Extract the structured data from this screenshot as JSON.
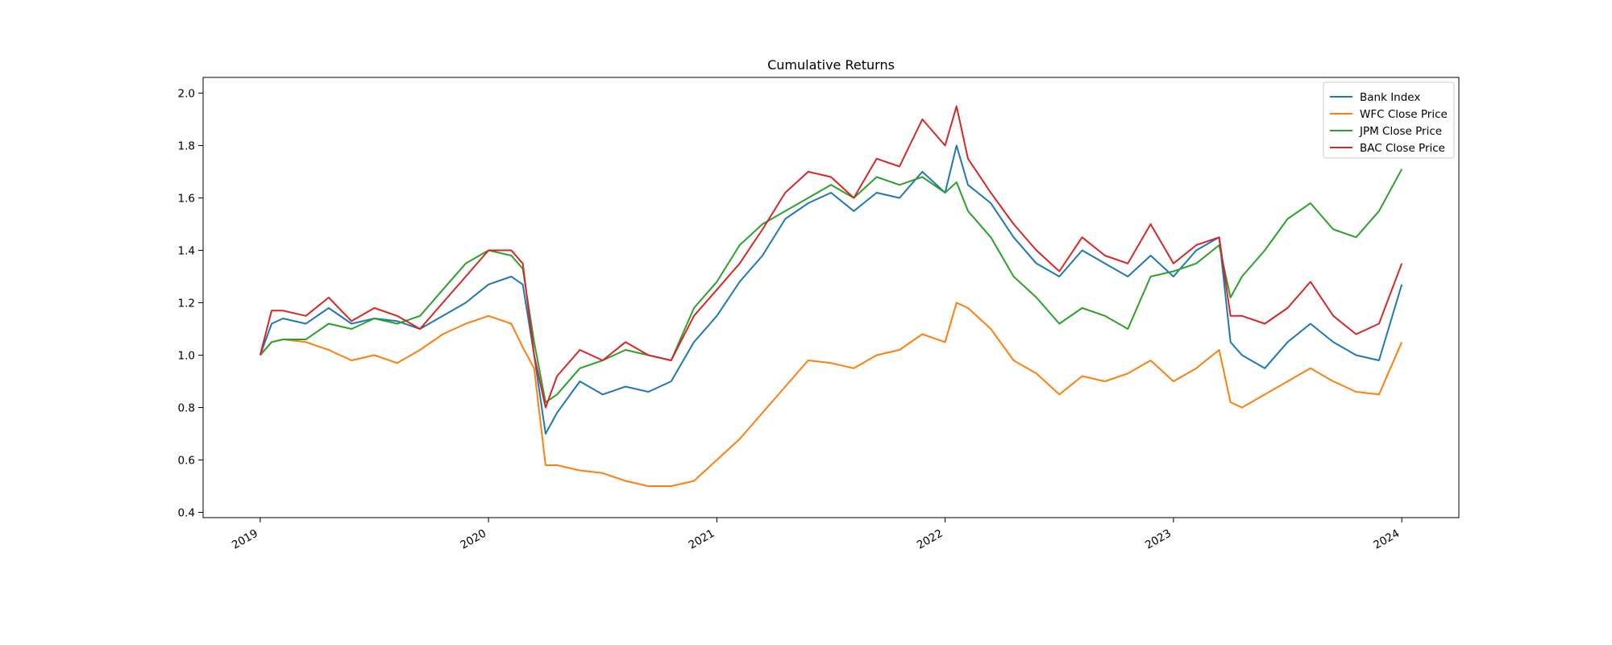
{
  "chart_data": {
    "type": "line",
    "title": "Cumulative Returns",
    "xlabel": "",
    "ylabel": "",
    "xlim": [
      2018.75,
      2024.25
    ],
    "ylim": [
      0.38,
      2.06
    ],
    "x_ticks": [
      2019,
      2020,
      2021,
      2022,
      2023,
      2024
    ],
    "x_tick_labels": [
      "2019",
      "2020",
      "2021",
      "2022",
      "2023",
      "2024"
    ],
    "y_ticks": [
      0.4,
      0.6,
      0.8,
      1.0,
      1.2,
      1.4,
      1.6,
      1.8,
      2.0
    ],
    "y_tick_labels": [
      "0.4",
      "0.6",
      "0.8",
      "1.0",
      "1.2",
      "1.4",
      "1.6",
      "1.8",
      "2.0"
    ],
    "grid": false,
    "legend_position": "top-right",
    "series": [
      {
        "name": "Bank Index",
        "color": "#1f77b4",
        "x": [
          2019.0,
          2019.05,
          2019.1,
          2019.2,
          2019.3,
          2019.4,
          2019.5,
          2019.6,
          2019.7,
          2019.8,
          2019.9,
          2020.0,
          2020.1,
          2020.15,
          2020.2,
          2020.25,
          2020.3,
          2020.4,
          2020.5,
          2020.6,
          2020.7,
          2020.8,
          2020.9,
          2021.0,
          2021.1,
          2021.2,
          2021.3,
          2021.4,
          2021.5,
          2021.6,
          2021.7,
          2021.8,
          2021.9,
          2022.0,
          2022.05,
          2022.1,
          2022.2,
          2022.3,
          2022.4,
          2022.5,
          2022.6,
          2022.7,
          2022.8,
          2022.9,
          2023.0,
          2023.1,
          2023.2,
          2023.25,
          2023.3,
          2023.4,
          2023.5,
          2023.6,
          2023.7,
          2023.8,
          2023.9,
          2024.0
        ],
        "y": [
          1.0,
          1.12,
          1.14,
          1.12,
          1.18,
          1.12,
          1.14,
          1.13,
          1.1,
          1.15,
          1.2,
          1.27,
          1.3,
          1.27,
          1.0,
          0.7,
          0.78,
          0.9,
          0.85,
          0.88,
          0.86,
          0.9,
          1.05,
          1.15,
          1.28,
          1.38,
          1.52,
          1.58,
          1.62,
          1.55,
          1.62,
          1.6,
          1.7,
          1.62,
          1.8,
          1.65,
          1.58,
          1.45,
          1.35,
          1.3,
          1.4,
          1.35,
          1.3,
          1.38,
          1.3,
          1.4,
          1.45,
          1.05,
          1.0,
          0.95,
          1.05,
          1.12,
          1.05,
          1.0,
          0.98,
          1.27
        ]
      },
      {
        "name": "WFC Close Price",
        "color": "#ff7f0e",
        "x": [
          2019.0,
          2019.05,
          2019.1,
          2019.2,
          2019.3,
          2019.4,
          2019.5,
          2019.6,
          2019.7,
          2019.8,
          2019.9,
          2020.0,
          2020.1,
          2020.15,
          2020.2,
          2020.25,
          2020.3,
          2020.4,
          2020.5,
          2020.6,
          2020.7,
          2020.8,
          2020.9,
          2021.0,
          2021.1,
          2021.2,
          2021.3,
          2021.4,
          2021.5,
          2021.6,
          2021.7,
          2021.8,
          2021.9,
          2022.0,
          2022.05,
          2022.1,
          2022.2,
          2022.3,
          2022.4,
          2022.5,
          2022.6,
          2022.7,
          2022.8,
          2022.9,
          2023.0,
          2023.1,
          2023.2,
          2023.25,
          2023.3,
          2023.4,
          2023.5,
          2023.6,
          2023.7,
          2023.8,
          2023.9,
          2024.0
        ],
        "y": [
          1.0,
          1.05,
          1.06,
          1.05,
          1.02,
          0.98,
          1.0,
          0.97,
          1.02,
          1.08,
          1.12,
          1.15,
          1.12,
          1.03,
          0.95,
          0.58,
          0.58,
          0.56,
          0.55,
          0.52,
          0.5,
          0.5,
          0.52,
          0.6,
          0.68,
          0.78,
          0.88,
          0.98,
          0.97,
          0.95,
          1.0,
          1.02,
          1.08,
          1.05,
          1.2,
          1.18,
          1.1,
          0.98,
          0.93,
          0.85,
          0.92,
          0.9,
          0.93,
          0.98,
          0.9,
          0.95,
          1.02,
          0.82,
          0.8,
          0.85,
          0.9,
          0.95,
          0.9,
          0.86,
          0.85,
          1.05
        ]
      },
      {
        "name": "JPM Close Price",
        "color": "#2ca02c",
        "x": [
          2019.0,
          2019.05,
          2019.1,
          2019.2,
          2019.3,
          2019.4,
          2019.5,
          2019.6,
          2019.7,
          2019.8,
          2019.9,
          2020.0,
          2020.1,
          2020.15,
          2020.2,
          2020.25,
          2020.3,
          2020.4,
          2020.5,
          2020.6,
          2020.7,
          2020.8,
          2020.9,
          2021.0,
          2021.1,
          2021.2,
          2021.3,
          2021.4,
          2021.5,
          2021.6,
          2021.7,
          2021.8,
          2021.9,
          2022.0,
          2022.05,
          2022.1,
          2022.2,
          2022.3,
          2022.4,
          2022.5,
          2022.6,
          2022.7,
          2022.8,
          2022.9,
          2023.0,
          2023.1,
          2023.2,
          2023.25,
          2023.3,
          2023.4,
          2023.5,
          2023.6,
          2023.7,
          2023.8,
          2023.9,
          2024.0
        ],
        "y": [
          1.0,
          1.05,
          1.06,
          1.06,
          1.12,
          1.1,
          1.14,
          1.12,
          1.15,
          1.25,
          1.35,
          1.4,
          1.38,
          1.33,
          1.05,
          0.82,
          0.85,
          0.95,
          0.98,
          1.02,
          1.0,
          0.98,
          1.18,
          1.28,
          1.42,
          1.5,
          1.55,
          1.6,
          1.65,
          1.6,
          1.68,
          1.65,
          1.68,
          1.62,
          1.66,
          1.55,
          1.45,
          1.3,
          1.22,
          1.12,
          1.18,
          1.15,
          1.1,
          1.3,
          1.32,
          1.35,
          1.42,
          1.22,
          1.3,
          1.4,
          1.52,
          1.58,
          1.48,
          1.45,
          1.55,
          1.71
        ]
      },
      {
        "name": "BAC Close Price",
        "color": "#d62728",
        "x": [
          2019.0,
          2019.05,
          2019.1,
          2019.2,
          2019.3,
          2019.4,
          2019.5,
          2019.6,
          2019.7,
          2019.8,
          2019.9,
          2020.0,
          2020.1,
          2020.15,
          2020.2,
          2020.25,
          2020.3,
          2020.4,
          2020.5,
          2020.6,
          2020.7,
          2020.8,
          2020.9,
          2021.0,
          2021.1,
          2021.2,
          2021.3,
          2021.4,
          2021.5,
          2021.6,
          2021.7,
          2021.8,
          2021.9,
          2022.0,
          2022.05,
          2022.1,
          2022.2,
          2022.3,
          2022.4,
          2022.5,
          2022.6,
          2022.7,
          2022.8,
          2022.9,
          2023.0,
          2023.1,
          2023.2,
          2023.25,
          2023.3,
          2023.4,
          2023.5,
          2023.6,
          2023.7,
          2023.8,
          2023.9,
          2024.0
        ],
        "y": [
          1.0,
          1.17,
          1.17,
          1.15,
          1.22,
          1.13,
          1.18,
          1.15,
          1.1,
          1.2,
          1.3,
          1.4,
          1.4,
          1.35,
          1.0,
          0.8,
          0.92,
          1.02,
          0.98,
          1.05,
          1.0,
          0.98,
          1.15,
          1.25,
          1.35,
          1.48,
          1.62,
          1.7,
          1.68,
          1.6,
          1.75,
          1.72,
          1.9,
          1.8,
          1.95,
          1.75,
          1.62,
          1.5,
          1.4,
          1.32,
          1.45,
          1.38,
          1.35,
          1.5,
          1.35,
          1.42,
          1.45,
          1.15,
          1.15,
          1.12,
          1.18,
          1.28,
          1.15,
          1.08,
          1.12,
          1.35
        ]
      }
    ]
  }
}
